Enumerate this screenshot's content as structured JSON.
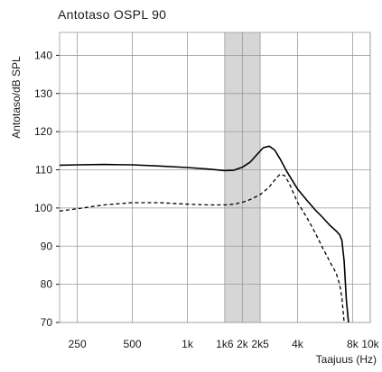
{
  "chart_data": {
    "type": "line",
    "title": "Antotaso OSPL 90",
    "xlabel": "Taajuus (Hz)",
    "ylabel": "Antotaso/dB SPL",
    "x_scale": "log",
    "xlim": [
      200,
      10000
    ],
    "ylim": [
      70,
      146
    ],
    "grid": true,
    "x_ticks": [
      {
        "value": 250,
        "label": "250"
      },
      {
        "value": 500,
        "label": "500"
      },
      {
        "value": 1000,
        "label": "1k"
      },
      {
        "value": 1600,
        "label": "1k6"
      },
      {
        "value": 2000,
        "label": "2k"
      },
      {
        "value": 2500,
        "label": "2k5"
      },
      {
        "value": 4000,
        "label": "4k"
      },
      {
        "value": 8000,
        "label": "8k"
      },
      {
        "value": 10000,
        "label": "10k"
      }
    ],
    "y_ticks": [
      70,
      80,
      90,
      100,
      110,
      120,
      130,
      140
    ],
    "highlight_band": {
      "x_from": 1600,
      "x_to": 2500,
      "color": "#d6d6d6"
    },
    "series": [
      {
        "style": "solid",
        "color": "#000000",
        "x": [
          200,
          250,
          350,
          500,
          700,
          1000,
          1300,
          1600,
          1800,
          2000,
          2200,
          2400,
          2600,
          2800,
          3000,
          3200,
          3500,
          4000,
          4500,
          5000,
          5500,
          6000,
          6500,
          6800,
          7000,
          7200,
          7400,
          7600
        ],
        "y": [
          111.2,
          111.3,
          111.4,
          111.3,
          111.0,
          110.6,
          110.2,
          109.8,
          109.9,
          110.7,
          112.0,
          114.0,
          115.8,
          116.2,
          115.2,
          113.0,
          109.5,
          105.0,
          102.0,
          99.5,
          97.5,
          95.5,
          94.0,
          93.0,
          91.5,
          86.0,
          76.0,
          70.0
        ]
      },
      {
        "style": "dashed",
        "color": "#000000",
        "x": [
          200,
          250,
          350,
          500,
          700,
          1000,
          1300,
          1600,
          1800,
          2000,
          2200,
          2500,
          2800,
          3000,
          3200,
          3400,
          3600,
          4000,
          4500,
          5000,
          5500,
          6000,
          6500,
          6800,
          7000,
          7200
        ],
        "y": [
          99.2,
          99.8,
          100.8,
          101.4,
          101.4,
          101.0,
          100.8,
          100.8,
          101.0,
          101.5,
          102.2,
          103.5,
          105.5,
          107.3,
          108.8,
          108.5,
          106.5,
          101.5,
          97.5,
          93.5,
          89.5,
          86.0,
          83.0,
          80.0,
          76.5,
          70.0
        ]
      }
    ]
  }
}
